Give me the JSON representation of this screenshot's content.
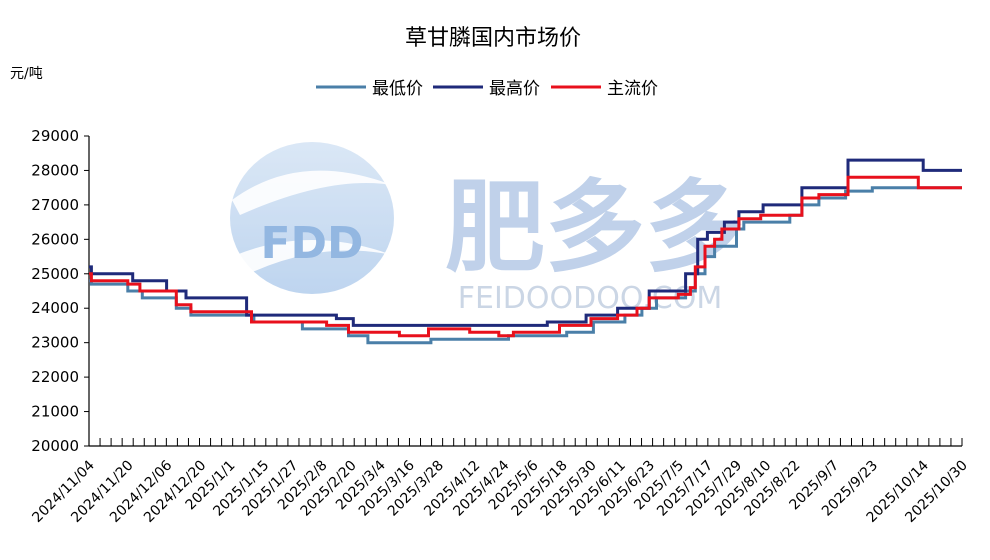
{
  "chart_data": {
    "type": "line",
    "title": "草甘膦国内市场价",
    "ylabel": "元/吨",
    "xlabel": "",
    "ylim": [
      20000,
      29000
    ],
    "yticks": [
      20000,
      21000,
      22000,
      23000,
      24000,
      25000,
      26000,
      27000,
      28000,
      29000
    ],
    "x_tick_labels": [
      "2024/11/04",
      "2024/11/20",
      "2024/12/06",
      "2024/12/20",
      "2025/1/1",
      "2025/1/15",
      "2025/1/27",
      "2025/2/8",
      "2025/2/20",
      "2025/3/4",
      "2025/3/16",
      "2025/3/28",
      "2025/4/12",
      "2025/4/24",
      "2025/5/6",
      "2025/5/18",
      "2025/5/30",
      "2025/6/11",
      "2025/6/23",
      "2025/7/5",
      "2025/7/17",
      "2025/7/29",
      "2025/8/10",
      "2025/8/22",
      "2025/9/7",
      "2025/9/23",
      "2025/10/14",
      "2025/10/30"
    ],
    "legend_position": "top-center",
    "grid": false,
    "colors": {
      "最低价": "#4a7fa8",
      "最高价": "#1f2a7a",
      "主流价": "#e8101c"
    },
    "series": [
      {
        "name": "最低价",
        "points": [
          [
            "2024/11/04",
            24800
          ],
          [
            "2024/11/05",
            24700
          ],
          [
            "2024/11/20",
            24500
          ],
          [
            "2024/11/26",
            24300
          ],
          [
            "2024/12/10",
            24000
          ],
          [
            "2024/12/16",
            23800
          ],
          [
            "2025/1/11",
            23600
          ],
          [
            "2025/1/31",
            23400
          ],
          [
            "2025/2/19",
            23200
          ],
          [
            "2025/2/27",
            23000
          ],
          [
            "2025/3/25",
            23100
          ],
          [
            "2025/4/14",
            23100
          ],
          [
            "2025/4/26",
            23200
          ],
          [
            "2025/5/20",
            23300
          ],
          [
            "2025/5/31",
            23600
          ],
          [
            "2025/6/13",
            23800
          ],
          [
            "2025/6/20",
            24000
          ],
          [
            "2025/6/26",
            24300
          ],
          [
            "2025/7/8",
            24500
          ],
          [
            "2025/7/12",
            25000
          ],
          [
            "2025/7/16",
            25500
          ],
          [
            "2025/7/20",
            25800
          ],
          [
            "2025/7/29",
            26300
          ],
          [
            "2025/8/1",
            26500
          ],
          [
            "2025/8/20",
            26700
          ],
          [
            "2025/8/25",
            27000
          ],
          [
            "2025/9/1",
            27200
          ],
          [
            "2025/9/12",
            27400
          ],
          [
            "2025/9/23",
            27500
          ],
          [
            "2025/10/30",
            27500
          ]
        ]
      },
      {
        "name": "最高价",
        "points": [
          [
            "2024/11/04",
            25200
          ],
          [
            "2024/11/05",
            25000
          ],
          [
            "2024/11/22",
            24800
          ],
          [
            "2024/12/06",
            24500
          ],
          [
            "2024/12/14",
            24300
          ],
          [
            "2025/1/8",
            23800
          ],
          [
            "2025/1/23",
            23800
          ],
          [
            "2025/2/14",
            23700
          ],
          [
            "2025/2/21",
            23500
          ],
          [
            "2025/3/20",
            23500
          ],
          [
            "2025/4/17",
            23500
          ],
          [
            "2025/5/12",
            23600
          ],
          [
            "2025/5/28",
            23800
          ],
          [
            "2025/6/10",
            24000
          ],
          [
            "2025/6/23",
            24500
          ],
          [
            "2025/7/8",
            25000
          ],
          [
            "2025/7/13",
            26000
          ],
          [
            "2025/7/17",
            26200
          ],
          [
            "2025/7/24",
            26500
          ],
          [
            "2025/7/30",
            26800
          ],
          [
            "2025/8/9",
            27000
          ],
          [
            "2025/8/25",
            27500
          ],
          [
            "2025/9/13",
            28300
          ],
          [
            "2025/10/10",
            28300
          ],
          [
            "2025/10/14",
            28000
          ],
          [
            "2025/10/30",
            28000
          ]
        ]
      },
      {
        "name": "主流价",
        "points": [
          [
            "2024/11/04",
            25000
          ],
          [
            "2024/11/05",
            24800
          ],
          [
            "2024/11/20",
            24700
          ],
          [
            "2024/11/25",
            24500
          ],
          [
            "2024/12/10",
            24100
          ],
          [
            "2024/12/16",
            23900
          ],
          [
            "2025/1/10",
            23600
          ],
          [
            "2025/1/31",
            23600
          ],
          [
            "2025/2/10",
            23500
          ],
          [
            "2025/2/19",
            23300
          ],
          [
            "2025/3/12",
            23200
          ],
          [
            "2025/3/24",
            23400
          ],
          [
            "2025/4/10",
            23300
          ],
          [
            "2025/4/22",
            23200
          ],
          [
            "2025/4/28",
            23300
          ],
          [
            "2025/5/17",
            23500
          ],
          [
            "2025/5/30",
            23700
          ],
          [
            "2025/6/10",
            23800
          ],
          [
            "2025/6/18",
            24000
          ],
          [
            "2025/6/23",
            24300
          ],
          [
            "2025/7/5",
            24400
          ],
          [
            "2025/7/10",
            24600
          ],
          [
            "2025/7/12",
            25200
          ],
          [
            "2025/7/16",
            25800
          ],
          [
            "2025/7/20",
            26000
          ],
          [
            "2025/7/23",
            26300
          ],
          [
            "2025/7/30",
            26600
          ],
          [
            "2025/8/8",
            26700
          ],
          [
            "2025/8/25",
            27200
          ],
          [
            "2025/9/1",
            27300
          ],
          [
            "2025/9/13",
            27800
          ],
          [
            "2025/10/12",
            27500
          ],
          [
            "2025/10/30",
            27500
          ]
        ]
      }
    ]
  },
  "watermark": {
    "logo": "FDD",
    "name": "肥多多",
    "url": "FEIDOODOO.COM"
  }
}
